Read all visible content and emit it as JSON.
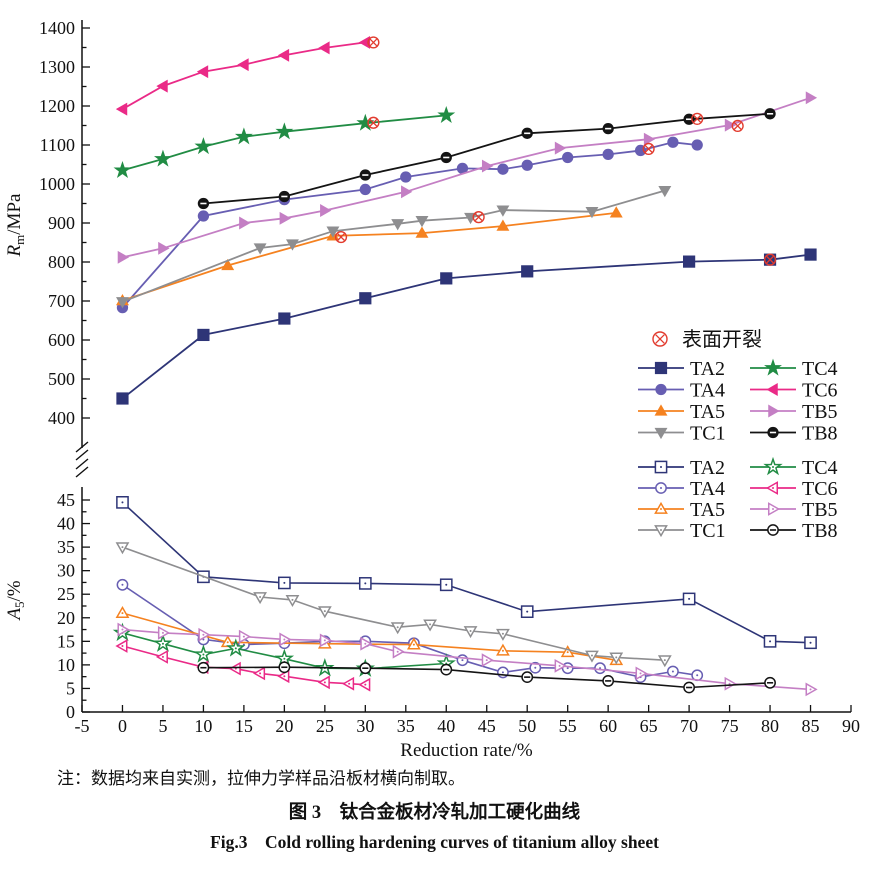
{
  "figure": {
    "note": "注：数据均来自实测，拉伸力学样品沿板材横向制取。",
    "caption_zh": "图 3　钛合金板材冷轧加工硬化曲线",
    "caption_en": "Fig.3　Cold rolling hardening curves of titanium alloy sheet"
  },
  "crack_marker": {
    "label": "表面开裂",
    "color": "#e23b2e",
    "symbol": "circle-cross"
  },
  "chart_data": [
    {
      "type": "line",
      "title": "",
      "xlabel": "",
      "ylabel": "Rm/MPa",
      "ylabel_parts": {
        "main": "R",
        "sub": "m",
        "rest": "/MPa"
      },
      "ylim": [
        400,
        1400
      ],
      "ytick_major": 100,
      "ytick_minor": 50,
      "xlim": [
        -5,
        90
      ],
      "grid": false,
      "marker_fill": "filled",
      "legend_position": "lower-right-inside",
      "legend_columns": [
        [
          "TA2",
          "TA4",
          "TA5",
          "TC1"
        ],
        [
          "TC4",
          "TC6",
          "TB5",
          "TB8"
        ]
      ],
      "series": [
        {
          "name": "TA2",
          "color": "#2e3577",
          "marker": "square",
          "points": [
            [
              0,
              450
            ],
            [
              10,
              613
            ],
            [
              20,
              655
            ],
            [
              30,
              707
            ],
            [
              40,
              758
            ],
            [
              50,
              776
            ],
            [
              70,
              801
            ],
            [
              80,
              806
            ],
            [
              85,
              819
            ]
          ],
          "crack": [
            80,
            806
          ]
        },
        {
          "name": "TA4",
          "color": "#675eb2",
          "marker": "circle",
          "points": [
            [
              0,
              683
            ],
            [
              10,
              918
            ],
            [
              20,
              960
            ],
            [
              30,
              986
            ],
            [
              35,
              1018
            ],
            [
              42,
              1040
            ],
            [
              47,
              1038
            ],
            [
              50,
              1048
            ],
            [
              55,
              1068
            ],
            [
              60,
              1076
            ],
            [
              64,
              1086
            ],
            [
              68,
              1107
            ],
            [
              71,
              1100
            ]
          ],
          "crack": [
            65,
            1090
          ]
        },
        {
          "name": "TA5",
          "color": "#f58220",
          "marker": "triangle-up",
          "points": [
            [
              0,
              701
            ],
            [
              13,
              791
            ],
            [
              26,
              867
            ],
            [
              37,
              874
            ],
            [
              47,
              892
            ],
            [
              61,
              926
            ]
          ],
          "crack": [
            27,
            864
          ]
        },
        {
          "name": "TC1",
          "color": "#8e8e90",
          "marker": "triangle-down",
          "points": [
            [
              0,
              698
            ],
            [
              17,
              836
            ],
            [
              21,
              846
            ],
            [
              26,
              879
            ],
            [
              34,
              898
            ],
            [
              37,
              906
            ],
            [
              43,
              914
            ],
            [
              47,
              933
            ],
            [
              58,
              929
            ],
            [
              67,
              983
            ]
          ],
          "crack": [
            44,
            915
          ]
        },
        {
          "name": "TC4",
          "color": "#218c44",
          "marker": "star",
          "points": [
            [
              0,
              1035
            ],
            [
              5,
              1064
            ],
            [
              10,
              1096
            ],
            [
              15,
              1121
            ],
            [
              20,
              1134
            ],
            [
              30,
              1156
            ],
            [
              40,
              1176
            ]
          ],
          "crack": [
            31,
            1157
          ]
        },
        {
          "name": "TC6",
          "color": "#ea2a87",
          "marker": "triangle-left",
          "points": [
            [
              0,
              1192
            ],
            [
              5,
              1251
            ],
            [
              10,
              1288
            ],
            [
              15,
              1306
            ],
            [
              20,
              1330
            ],
            [
              25,
              1349
            ],
            [
              30,
              1363
            ]
          ],
          "crack": [
            31,
            1363
          ]
        },
        {
          "name": "TB5",
          "color": "#c47fc4",
          "marker": "triangle-right",
          "points": [
            [
              0,
              812
            ],
            [
              5,
              835
            ],
            [
              15,
              900
            ],
            [
              20,
              912
            ],
            [
              25,
              932
            ],
            [
              35,
              980
            ],
            [
              45,
              1046
            ],
            [
              54,
              1092
            ],
            [
              65,
              1115
            ],
            [
              75,
              1151
            ],
            [
              85,
              1221
            ]
          ],
          "crack": [
            76,
            1149
          ]
        },
        {
          "name": "TB8",
          "color": "#141414",
          "marker": "circle-notch",
          "points": [
            [
              10,
              950
            ],
            [
              20,
              968
            ],
            [
              30,
              1023
            ],
            [
              40,
              1068
            ],
            [
              50,
              1130
            ],
            [
              60,
              1142
            ],
            [
              70,
              1166
            ],
            [
              80,
              1180
            ]
          ],
          "crack": [
            71,
            1167
          ]
        }
      ]
    },
    {
      "type": "line",
      "title": "",
      "xlabel": "Reduction rate/%",
      "ylabel": "A5/%",
      "ylabel_parts": {
        "main": "A",
        "sub": "5",
        "rest": "/%"
      },
      "ylim": [
        0,
        45
      ],
      "ytick_major": 5,
      "ytick_minor": 2.5,
      "xlim": [
        -5,
        90
      ],
      "xtick_major": 5,
      "grid": false,
      "marker_fill": "open",
      "legend_position": "upper-right-inside",
      "legend_columns": [
        [
          "TA2",
          "TA4",
          "TA5",
          "TC1"
        ],
        [
          "TC4",
          "TC6",
          "TB5",
          "TB8"
        ]
      ],
      "series": [
        {
          "name": "TA2",
          "color": "#2e3577",
          "marker": "square",
          "points": [
            [
              0,
              44.5
            ],
            [
              10,
              28.7
            ],
            [
              20,
              27.4
            ],
            [
              30,
              27.3
            ],
            [
              40,
              27
            ],
            [
              50,
              21.3
            ],
            [
              70,
              24
            ],
            [
              80,
              15
            ],
            [
              85,
              14.7
            ]
          ]
        },
        {
          "name": "TA4",
          "color": "#675eb2",
          "marker": "circle",
          "points": [
            [
              0,
              27
            ],
            [
              10,
              15.4
            ],
            [
              15,
              14.3
            ],
            [
              20,
              14.6
            ],
            [
              25,
              15
            ],
            [
              30,
              15
            ],
            [
              36,
              14.6
            ],
            [
              42,
              11
            ],
            [
              47,
              8.4
            ],
            [
              51,
              9.4
            ],
            [
              55,
              9.3
            ],
            [
              59,
              9.3
            ],
            [
              64,
              7.4
            ],
            [
              68,
              8.6
            ],
            [
              71,
              7.8
            ]
          ]
        },
        {
          "name": "TA5",
          "color": "#f58220",
          "marker": "triangle-up",
          "points": [
            [
              0,
              21
            ],
            [
              13,
              14.8
            ],
            [
              25,
              14.5
            ],
            [
              36,
              14.3
            ],
            [
              47,
              13
            ],
            [
              55,
              12.7
            ],
            [
              61,
              11
            ]
          ]
        },
        {
          "name": "TC1",
          "color": "#8e8e90",
          "marker": "triangle-down",
          "points": [
            [
              0,
              35
            ],
            [
              17,
              24.4
            ],
            [
              21,
              23.8
            ],
            [
              25,
              21.4
            ],
            [
              34,
              18
            ],
            [
              38,
              18.6
            ],
            [
              43,
              17.2
            ],
            [
              47,
              16.6
            ],
            [
              58,
              12
            ],
            [
              61,
              11.6
            ],
            [
              67,
              11
            ]
          ]
        },
        {
          "name": "TC4",
          "color": "#218c44",
          "marker": "star",
          "points": [
            [
              0,
              16.8
            ],
            [
              5,
              14.5
            ],
            [
              10,
              12.2
            ],
            [
              14,
              13.5
            ],
            [
              20,
              11.3
            ],
            [
              25,
              9.3
            ],
            [
              30,
              9.2
            ],
            [
              40,
              10.3
            ]
          ]
        },
        {
          "name": "TC6",
          "color": "#ea2a87",
          "marker": "triangle-left",
          "points": [
            [
              0,
              14
            ],
            [
              5,
              11.7
            ],
            [
              10,
              9.5
            ],
            [
              14,
              9.2
            ],
            [
              17,
              8.2
            ],
            [
              20,
              7.6
            ],
            [
              25,
              6.3
            ],
            [
              28,
              6
            ],
            [
              30,
              5.8
            ]
          ]
        },
        {
          "name": "TB5",
          "color": "#c47fc4",
          "marker": "triangle-right",
          "points": [
            [
              0,
              17.5
            ],
            [
              5,
              16.8
            ],
            [
              10,
              16.4
            ],
            [
              15,
              16
            ],
            [
              20,
              15.4
            ],
            [
              25,
              15.2
            ],
            [
              30,
              14.5
            ],
            [
              34,
              12.8
            ],
            [
              45,
              11
            ],
            [
              54,
              9.8
            ],
            [
              64,
              8.2
            ],
            [
              75,
              6
            ],
            [
              85,
              4.8
            ]
          ]
        },
        {
          "name": "TB8",
          "color": "#141414",
          "marker": "circle-notch",
          "points": [
            [
              10,
              9.4
            ],
            [
              20,
              9.5
            ],
            [
              30,
              9.3
            ],
            [
              40,
              9
            ],
            [
              50,
              7.4
            ],
            [
              60,
              6.6
            ],
            [
              70,
              5.2
            ],
            [
              80,
              6.2
            ]
          ]
        }
      ]
    }
  ]
}
